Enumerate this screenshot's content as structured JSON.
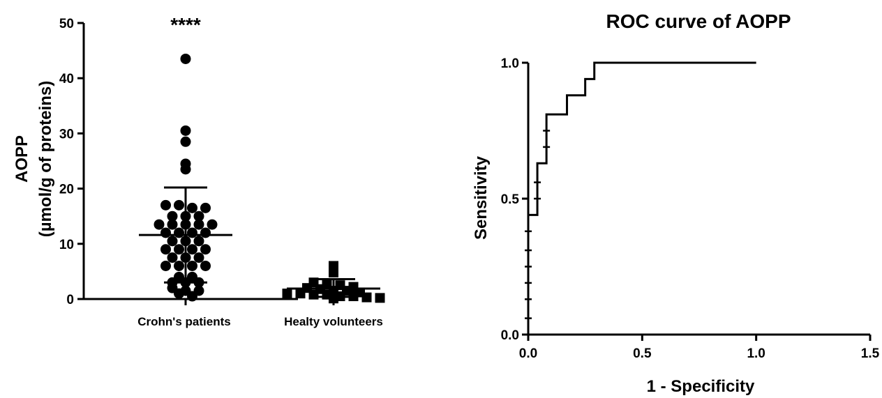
{
  "chart_data": [
    {
      "type": "scatter",
      "title": "",
      "ylabel_line1": "AOPP",
      "ylabel_line2": "(µmol/g of proteins)",
      "xlabel": "",
      "ylim": [
        0,
        50
      ],
      "yticks": [
        "0",
        "10",
        "20",
        "30",
        "40",
        "50"
      ],
      "categories": [
        "Crohn's patients",
        "Healty volunteers"
      ],
      "significance": "****",
      "series": [
        {
          "marker": "circle",
          "mean": 11.6,
          "sd_upper": 20.2,
          "sd_lower": 3.0,
          "values": [
            43.5,
            30.5,
            28.5,
            23.5,
            24.5,
            17.0,
            17.0,
            16.5,
            16.5,
            15.0,
            15.0,
            15.0,
            13.5,
            13.5,
            13.5,
            13.5,
            13.5,
            12.0,
            12.0,
            12.0,
            12.0,
            10.5,
            10.5,
            10.5,
            9.0,
            9.0,
            9.0,
            9.0,
            7.5,
            7.5,
            7.5,
            6.0,
            6.0,
            6.0,
            6.0,
            4.0,
            4.0,
            3.0,
            3.0,
            3.0,
            2.0,
            1.5,
            1.5,
            1.0,
            0.5
          ]
        },
        {
          "marker": "square",
          "mean": 1.9,
          "sd_upper": 3.6,
          "sd_lower": 0.4,
          "values": [
            6.0,
            4.8,
            3.0,
            2.7,
            2.5,
            2.2,
            2.0,
            1.8,
            1.5,
            1.5,
            1.2,
            1.0,
            1.0,
            0.8,
            0.8,
            0.5,
            0.5,
            0.3,
            0.2,
            0.1
          ]
        }
      ]
    },
    {
      "type": "line",
      "title": "ROC curve of AOPP",
      "xlabel": "1 - Specificity",
      "ylabel": "Sensitivity",
      "xlim": [
        0,
        1.5
      ],
      "ylim": [
        0,
        1.0
      ],
      "xticks": [
        "0.0",
        "0.5",
        "1.0",
        "1.5"
      ],
      "yticks": [
        "0.0",
        "0.5",
        "1.0"
      ],
      "series": [
        {
          "x": [
            0,
            0,
            0.04,
            0.04,
            0.08,
            0.08,
            0.17,
            0.17,
            0.25,
            0.25,
            0.29,
            0.29,
            1.0
          ],
          "y": [
            0,
            0.44,
            0.44,
            0.63,
            0.63,
            0.81,
            0.81,
            0.88,
            0.88,
            0.94,
            0.94,
            1.0,
            1.0
          ],
          "tick_points": [
            [
              0,
              0.06
            ],
            [
              0,
              0.13
            ],
            [
              0,
              0.19
            ],
            [
              0,
              0.25
            ],
            [
              0,
              0.31
            ],
            [
              0,
              0.38
            ],
            [
              0.04,
              0.5
            ],
            [
              0.04,
              0.56
            ],
            [
              0.08,
              0.69
            ],
            [
              0.08,
              0.75
            ]
          ]
        }
      ]
    }
  ]
}
